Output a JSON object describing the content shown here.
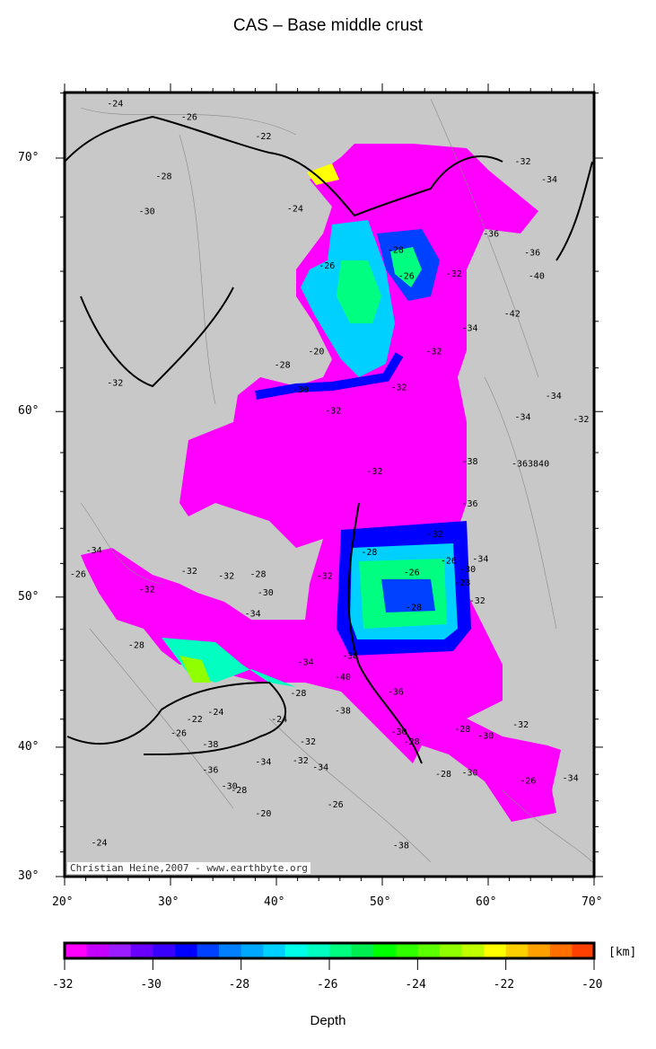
{
  "title": "CAS – Base middle crust",
  "credit": "Christian Heine,2007 - www.earthbyte.org",
  "map": {
    "projection": "mercator",
    "lon_range": [
      20,
      70
    ],
    "lat_range": [
      30,
      72.3
    ],
    "x_ticks": [
      "20°",
      "30°",
      "40°",
      "50°",
      "60°",
      "70°"
    ],
    "y_ticks": [
      "70°",
      "60°",
      "50°",
      "40°",
      "30°"
    ],
    "land_color": "#c8c8c8",
    "contour_labels": [
      {
        "lon": 24,
        "lat": 71.6,
        "text": "-24"
      },
      {
        "lon": 31,
        "lat": 71.2,
        "text": "-26"
      },
      {
        "lon": 38,
        "lat": 70.6,
        "text": "-22"
      },
      {
        "lon": 28.6,
        "lat": 69.3,
        "text": "-28"
      },
      {
        "lon": 27,
        "lat": 68.1,
        "text": "-30"
      },
      {
        "lon": 41,
        "lat": 68.2,
        "text": "-24"
      },
      {
        "lon": 44,
        "lat": 66.1,
        "text": "-26"
      },
      {
        "lon": 50.5,
        "lat": 66.7,
        "text": "-28"
      },
      {
        "lon": 51.5,
        "lat": 65.7,
        "text": "-26"
      },
      {
        "lon": 56,
        "lat": 65.8,
        "text": "-32"
      },
      {
        "lon": 59.5,
        "lat": 67.3,
        "text": "-36"
      },
      {
        "lon": 63.4,
        "lat": 66.6,
        "text": "-36"
      },
      {
        "lon": 63.8,
        "lat": 65.7,
        "text": "-40"
      },
      {
        "lon": 61.5,
        "lat": 64.2,
        "text": "-42"
      },
      {
        "lon": 57.5,
        "lat": 63.6,
        "text": "-34"
      },
      {
        "lon": 62.5,
        "lat": 69.8,
        "text": "-32"
      },
      {
        "lon": 65,
        "lat": 69.2,
        "text": "-34"
      },
      {
        "lon": 39.8,
        "lat": 62,
        "text": "-28"
      },
      {
        "lon": 43,
        "lat": 62.6,
        "text": "-20"
      },
      {
        "lon": 41.5,
        "lat": 60.9,
        "text": "-30"
      },
      {
        "lon": 44.6,
        "lat": 59.9,
        "text": "-32"
      },
      {
        "lon": 24,
        "lat": 61.2,
        "text": "-32"
      },
      {
        "lon": 50.8,
        "lat": 61,
        "text": "-32"
      },
      {
        "lon": 54.1,
        "lat": 62.6,
        "text": "-32"
      },
      {
        "lon": 65.4,
        "lat": 60.6,
        "text": "-34"
      },
      {
        "lon": 62.5,
        "lat": 59.6,
        "text": "-34"
      },
      {
        "lon": 68,
        "lat": 59.5,
        "text": "-32"
      },
      {
        "lon": 57.5,
        "lat": 57.4,
        "text": "-38"
      },
      {
        "lon": 62.2,
        "lat": 57.3,
        "text": "-363840"
      },
      {
        "lon": 57.5,
        "lat": 55.2,
        "text": "-36"
      },
      {
        "lon": 48.5,
        "lat": 56.9,
        "text": "-32"
      },
      {
        "lon": 54.2,
        "lat": 53.5,
        "text": "-32"
      },
      {
        "lon": 48,
        "lat": 52.5,
        "text": "-28"
      },
      {
        "lon": 52,
        "lat": 51.3,
        "text": "-26"
      },
      {
        "lon": 55.5,
        "lat": 52,
        "text": "-26"
      },
      {
        "lon": 57.3,
        "lat": 51.5,
        "text": "-30"
      },
      {
        "lon": 58.5,
        "lat": 52.1,
        "text": "-34"
      },
      {
        "lon": 56.8,
        "lat": 50.7,
        "text": "-28"
      },
      {
        "lon": 58.2,
        "lat": 49.6,
        "text": "-32"
      },
      {
        "lon": 52.2,
        "lat": 49.2,
        "text": "-28"
      },
      {
        "lon": 43.8,
        "lat": 51.1,
        "text": "-32"
      },
      {
        "lon": 37.5,
        "lat": 51.2,
        "text": "-28"
      },
      {
        "lon": 34.5,
        "lat": 51.1,
        "text": "-32"
      },
      {
        "lon": 38.2,
        "lat": 50.1,
        "text": "-30"
      },
      {
        "lon": 37,
        "lat": 48.8,
        "text": "-34"
      },
      {
        "lon": 22,
        "lat": 52.6,
        "text": "-34"
      },
      {
        "lon": 27,
        "lat": 50.3,
        "text": "-32"
      },
      {
        "lon": 31,
        "lat": 51.4,
        "text": "-32"
      },
      {
        "lon": 20.5,
        "lat": 51.2,
        "text": "-26"
      },
      {
        "lon": 26,
        "lat": 46.8,
        "text": "-28"
      },
      {
        "lon": 42,
        "lat": 45.7,
        "text": "-34"
      },
      {
        "lon": 45.5,
        "lat": 44.7,
        "text": "-40"
      },
      {
        "lon": 46.2,
        "lat": 46.1,
        "text": "-38"
      },
      {
        "lon": 41.3,
        "lat": 43.6,
        "text": "-28"
      },
      {
        "lon": 45.5,
        "lat": 42.4,
        "text": "-38"
      },
      {
        "lon": 50.5,
        "lat": 43.7,
        "text": "-36"
      },
      {
        "lon": 50.8,
        "lat": 40.9,
        "text": "-30"
      },
      {
        "lon": 52,
        "lat": 40.2,
        "text": "-28"
      },
      {
        "lon": 55,
        "lat": 37.8,
        "text": "-28"
      },
      {
        "lon": 57.5,
        "lat": 37.9,
        "text": "-30"
      },
      {
        "lon": 56.8,
        "lat": 41.1,
        "text": "-28"
      },
      {
        "lon": 59,
        "lat": 40.6,
        "text": "-30"
      },
      {
        "lon": 62.3,
        "lat": 41.4,
        "text": "-32"
      },
      {
        "lon": 63,
        "lat": 37.3,
        "text": "-26"
      },
      {
        "lon": 67,
        "lat": 37.5,
        "text": "-34"
      },
      {
        "lon": 31.5,
        "lat": 41.8,
        "text": "-22"
      },
      {
        "lon": 33.5,
        "lat": 42.3,
        "text": "-24"
      },
      {
        "lon": 30,
        "lat": 40.8,
        "text": "-26"
      },
      {
        "lon": 33,
        "lat": 40,
        "text": "-38"
      },
      {
        "lon": 33,
        "lat": 38.1,
        "text": "-36"
      },
      {
        "lon": 34.8,
        "lat": 36.9,
        "text": "-30"
      },
      {
        "lon": 35.7,
        "lat": 36.6,
        "text": "-28"
      },
      {
        "lon": 42.2,
        "lat": 40.2,
        "text": "-32"
      },
      {
        "lon": 41.5,
        "lat": 38.8,
        "text": "-32"
      },
      {
        "lon": 38,
        "lat": 38.7,
        "text": "-34"
      },
      {
        "lon": 43.4,
        "lat": 38.3,
        "text": "-34"
      },
      {
        "lon": 38,
        "lat": 34.8,
        "text": "-20"
      },
      {
        "lon": 44.8,
        "lat": 35.5,
        "text": "-26"
      },
      {
        "lon": 51,
        "lat": 32.3,
        "text": "-38"
      },
      {
        "lon": 22.5,
        "lat": 32.5,
        "text": "-24"
      },
      {
        "lon": 39.5,
        "lat": 41.8,
        "text": "-24"
      }
    ]
  },
  "colorbar": {
    "unit": "[km]",
    "label": "Depth",
    "range": [
      -32,
      -20
    ],
    "ticks": [
      "-32",
      "-30",
      "-28",
      "-26",
      "-24",
      "-22",
      "-20"
    ],
    "colors": [
      "#ff00ff",
      "#c400ff",
      "#9a1cff",
      "#6a00ff",
      "#3a00ff",
      "#0000ff",
      "#0040ff",
      "#0080ff",
      "#00a8ff",
      "#00d0ff",
      "#00ffe8",
      "#00ffc0",
      "#00ff80",
      "#00ee50",
      "#00ff00",
      "#30ff00",
      "#5aff00",
      "#90ff00",
      "#c0ff00",
      "#ffff00",
      "#ffd000",
      "#ffa000",
      "#ff7000",
      "#ff4000"
    ]
  }
}
